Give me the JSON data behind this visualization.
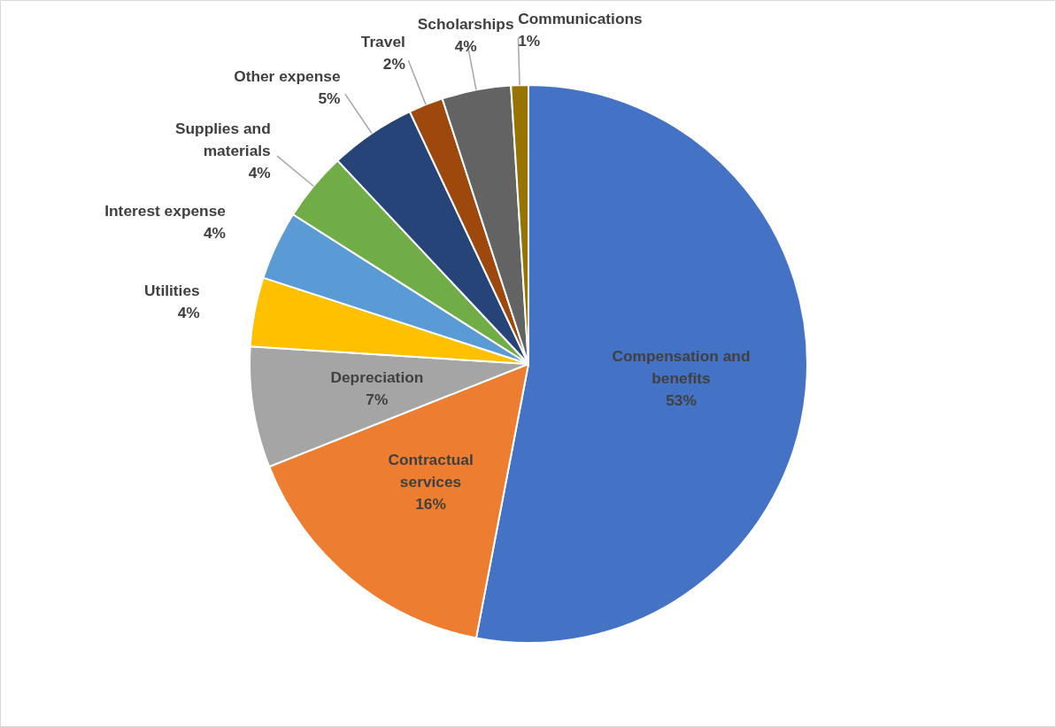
{
  "chart_data": {
    "type": "pie",
    "categories": [
      "Compensation and benefits",
      "Contractual services",
      "Depreciation",
      "Utilities",
      "Interest expense",
      "Supplies and materials",
      "Other expense",
      "Travel",
      "Scholarships",
      "Communications"
    ],
    "values": [
      53,
      16,
      7,
      4,
      4,
      4,
      5,
      2,
      4,
      1
    ],
    "colors": [
      "#4472c4",
      "#ed7d31",
      "#a5a5a5",
      "#ffc000",
      "#5b9bd5",
      "#70ad47",
      "#264478",
      "#9e480e",
      "#636363",
      "#997300"
    ],
    "value_labels": [
      "53%",
      "16%",
      "7%",
      "4%",
      "4%",
      "4%",
      "5%",
      "2%",
      "4%",
      "1%"
    ]
  }
}
